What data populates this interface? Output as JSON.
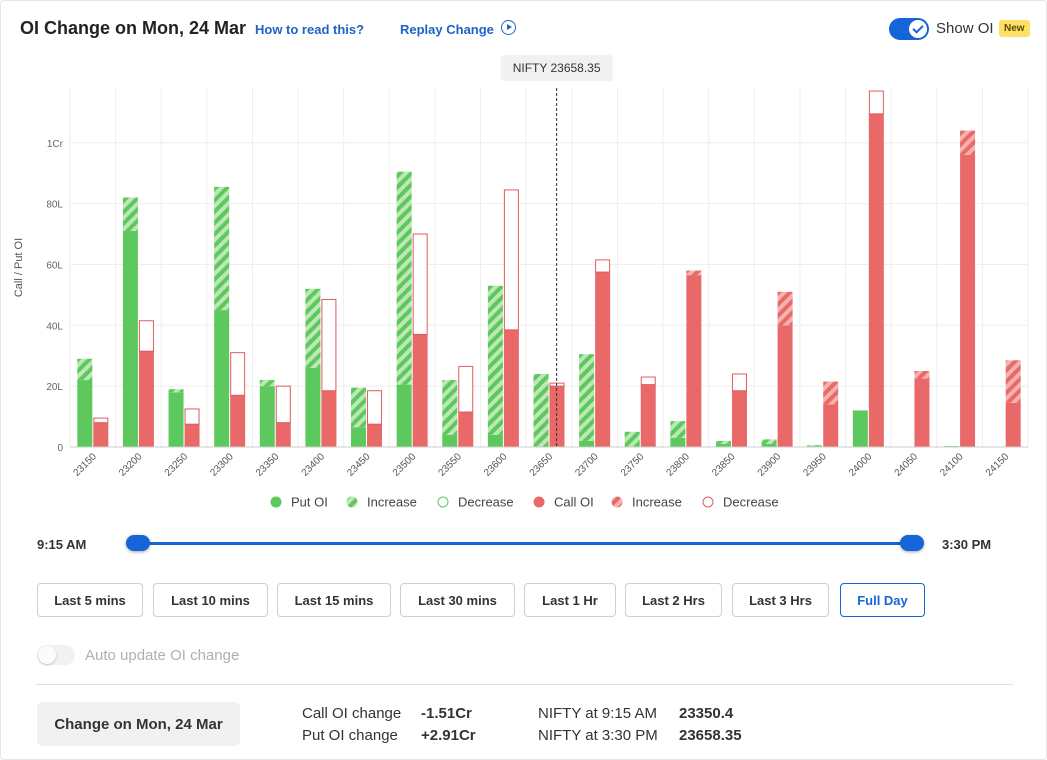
{
  "header": {
    "title": "OI Change on Mon, 24 Mar",
    "how_to_read": "How to read this?",
    "replay": "Replay Change",
    "show_oi_label": "Show OI",
    "show_oi_on": true,
    "new_badge": "New"
  },
  "chart_data": {
    "type": "bar",
    "ylabel": "Call / Put OI",
    "y_ticks": [
      "0",
      "20L",
      "40L",
      "60L",
      "80L",
      "1Cr"
    ],
    "ylim_lakh": [
      0,
      118
    ],
    "spot_label": "NIFTY 23658.35",
    "spot_value": 23658.35,
    "strikes": [
      "23150",
      "23200",
      "23250",
      "23300",
      "23350",
      "23400",
      "23450",
      "23500",
      "23550",
      "23600",
      "23650",
      "23700",
      "23750",
      "23800",
      "23850",
      "23900",
      "23950",
      "24000",
      "24050",
      "24100",
      "24150"
    ],
    "series": [
      {
        "name": "Put OI",
        "values": [
          22,
          71,
          18,
          45,
          20,
          26,
          6.5,
          20.5,
          4,
          4,
          0,
          2,
          0,
          3,
          1,
          1,
          0.3,
          12,
          0,
          0.3,
          0
        ]
      },
      {
        "name": "Increase",
        "values": [
          7,
          11,
          1,
          40.5,
          2,
          26,
          13,
          70,
          18,
          49,
          24,
          28.5,
          5,
          5.5,
          1,
          1.5,
          0.3,
          0,
          0,
          0,
          0
        ]
      },
      {
        "name": "Decrease",
        "values": [
          0,
          0,
          0,
          0,
          0,
          0,
          0,
          0,
          0,
          0,
          0,
          0,
          0,
          0,
          0,
          0,
          0,
          0,
          0,
          0,
          0
        ]
      },
      {
        "name": "Call OI",
        "values": [
          8,
          31.5,
          7.5,
          17,
          8,
          18.5,
          7.5,
          37,
          11.5,
          38.5,
          20,
          57.5,
          20.5,
          56.5,
          18.5,
          40,
          14,
          109.5,
          22.5,
          96,
          14.5
        ]
      },
      {
        "name": "Increase",
        "values": [
          0,
          0,
          0,
          0,
          0,
          0,
          0,
          0,
          0,
          0,
          0,
          0,
          0,
          1.5,
          0,
          11,
          7.5,
          0,
          2.5,
          8,
          14
        ]
      },
      {
        "name": "Decrease",
        "values": [
          1.5,
          10,
          5,
          14,
          12,
          30,
          11,
          33,
          15,
          46,
          1,
          4,
          2.5,
          0,
          5.5,
          0,
          0,
          7.5,
          0,
          0,
          0
        ]
      }
    ],
    "colors": {
      "put": "#5dc85d",
      "put_light": "#bde8b5",
      "call": "#e96969",
      "call_light": "#f6b1b1",
      "decrease_border_call": "#e05c5c",
      "decrease_border_put": "#5dc85d"
    },
    "legend": [
      {
        "label": "Put OI",
        "kind": "put-solid"
      },
      {
        "label": "Increase",
        "kind": "put-hatch"
      },
      {
        "label": "Decrease",
        "kind": "put-hollow"
      },
      {
        "label": "Call OI",
        "kind": "call-solid"
      },
      {
        "label": "Increase",
        "kind": "call-hatch"
      },
      {
        "label": "Decrease",
        "kind": "call-hollow"
      }
    ],
    "grid": true,
    "legend_placement": "bottom-center"
  },
  "slider": {
    "start_label": "9:15 AM",
    "end_label": "3:30 PM"
  },
  "range_buttons": [
    {
      "label": "Last 5 mins",
      "active": false
    },
    {
      "label": "Last 10 mins",
      "active": false
    },
    {
      "label": "Last 15 mins",
      "active": false
    },
    {
      "label": "Last 30 mins",
      "active": false
    },
    {
      "label": "Last 1 Hr",
      "active": false
    },
    {
      "label": "Last 2 Hrs",
      "active": false
    },
    {
      "label": "Last 3 Hrs",
      "active": false
    },
    {
      "label": "Full Day",
      "active": true
    }
  ],
  "auto_update": {
    "label": "Auto update OI change",
    "enabled": false
  },
  "footer": {
    "change_button": "Change on Mon, 24 Mar",
    "call_oi_change_label": "Call OI change",
    "call_oi_change_value": "-1.51Cr",
    "put_oi_change_label": "Put OI change",
    "put_oi_change_value": "+2.91Cr",
    "nifty_open_label": "NIFTY at 9:15 AM",
    "nifty_open_value": "23350.4",
    "nifty_close_label": "NIFTY at 3:30 PM",
    "nifty_close_value": "23658.35"
  }
}
